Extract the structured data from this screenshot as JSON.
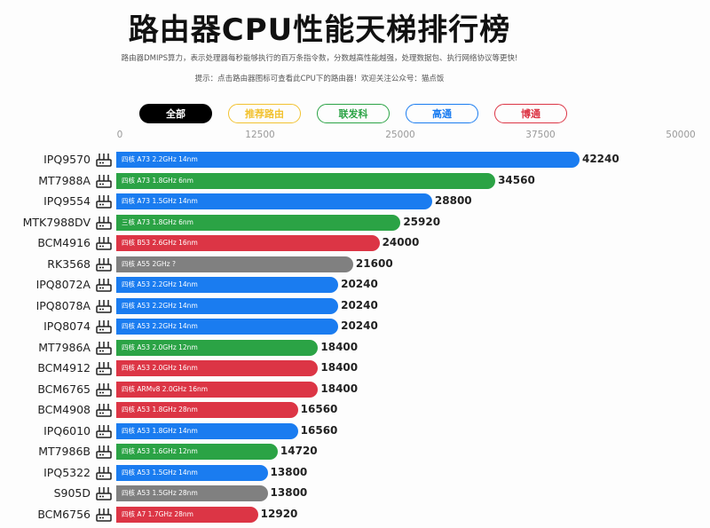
{
  "header": {
    "title": "路由器CPU性能天梯排行榜",
    "subtitle": "路由器DMIPS算力，表示处理器每秒能够执行的百万条指令数，分数越高性能越强，处理数据包、执行网络协议等更快!",
    "hint": "提示：点击路由器图标可查看此CPU下的路由器！欢迎关注公众号：猫点饭"
  },
  "filters": [
    {
      "label": "全部",
      "color": "#000000",
      "active": true
    },
    {
      "label": "推荐路由",
      "color": "#f2c230"
    },
    {
      "label": "联发科",
      "color": "#2ba345"
    },
    {
      "label": "高通",
      "color": "#1a7cf0"
    },
    {
      "label": "博通",
      "color": "#dc3545"
    }
  ],
  "colors": {
    "blue": "#1a7cf0",
    "green": "#2ba345",
    "red": "#dc3545",
    "gray": "#808080"
  },
  "chart_data": {
    "type": "bar",
    "orientation": "horizontal",
    "xlim": [
      0,
      50000
    ],
    "ticks": [
      "0",
      "12500",
      "25000",
      "37500",
      "50000"
    ],
    "categories": [
      "IPQ9570",
      "MT7988A",
      "IPQ9554",
      "MTK7988DV",
      "BCM4916",
      "RK3568",
      "IPQ8072A",
      "IPQ8078A",
      "IPQ8074",
      "MT7986A",
      "BCM4912",
      "BCM6765",
      "BCM4908",
      "IPQ6010",
      "MT7986B",
      "IPQ5322",
      "S905D",
      "BCM6756"
    ],
    "values": [
      42240,
      34560,
      28800,
      25920,
      24000,
      21600,
      20240,
      20240,
      20240,
      18400,
      18400,
      18400,
      16560,
      16560,
      14720,
      13800,
      13800,
      12920
    ],
    "specs": [
      "四核 A73 2.2GHz 14nm",
      "四核 A73 1.8GHz 6nm",
      "四核 A73 1.5GHz 14nm",
      "三核 A73 1.8GHz 6nm",
      "四核 B53 2.6GHz 16nm",
      "四核 A55 2GHz ?",
      "四核 A53 2.2GHz 14nm",
      "四核 A53 2.2GHz 14nm",
      "四核 A53 2.2GHz 14nm",
      "四核 A53 2.0GHz 12nm",
      "四核 A53 2.0GHz 16nm",
      "四核 ARMv8 2.0GHz 16nm",
      "四核 A53 1.8GHz 28nm",
      "四核 A53 1.8GHz 14nm",
      "四核 A53 1.6GHz 12nm",
      "四核 A53 1.5GHz 14nm",
      "四核 A53 1.5GHz 28nm",
      "四核 A7 1.7GHz 28nm"
    ],
    "bar_colors": [
      "blue",
      "green",
      "blue",
      "green",
      "red",
      "gray",
      "blue",
      "blue",
      "blue",
      "green",
      "red",
      "red",
      "red",
      "blue",
      "green",
      "blue",
      "gray",
      "red"
    ]
  }
}
